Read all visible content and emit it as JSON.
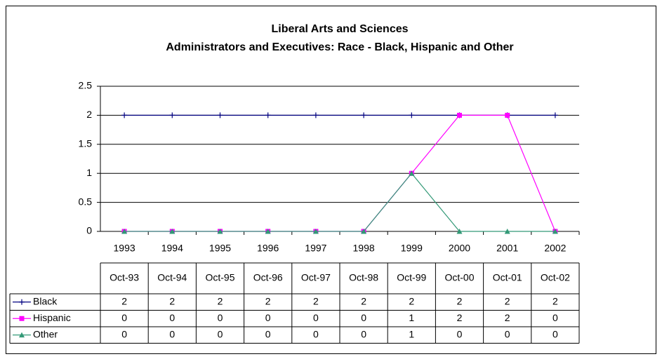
{
  "chart_data": {
    "type": "line",
    "title": [
      "Liberal Arts and Sciences",
      "Administrators and Executives: Race - Black, Hispanic and Other"
    ],
    "categories": [
      "1993",
      "1994",
      "1995",
      "1996",
      "1997",
      "1998",
      "1999",
      "2000",
      "2001",
      "2002"
    ],
    "table_columns": [
      "Oct-93",
      "Oct-94",
      "Oct-95",
      "Oct-96",
      "Oct-97",
      "Oct-98",
      "Oct-99",
      "Oct-00",
      "Oct-01",
      "Oct-02"
    ],
    "series": [
      {
        "name": "Black",
        "color": "#000080",
        "marker": "plus",
        "values": [
          2,
          2,
          2,
          2,
          2,
          2,
          2,
          2,
          2,
          2
        ]
      },
      {
        "name": "Hispanic",
        "color": "#ff00ff",
        "marker": "square",
        "values": [
          0,
          0,
          0,
          0,
          0,
          0,
          1,
          2,
          2,
          0
        ]
      },
      {
        "name": "Other",
        "color": "#339977",
        "marker": "triangle",
        "values": [
          0,
          0,
          0,
          0,
          0,
          0,
          1,
          0,
          0,
          0
        ]
      }
    ],
    "ylim": [
      0,
      2.5
    ],
    "yticks": [
      0,
      0.5,
      1,
      1.5,
      2,
      2.5
    ],
    "grid": true
  }
}
